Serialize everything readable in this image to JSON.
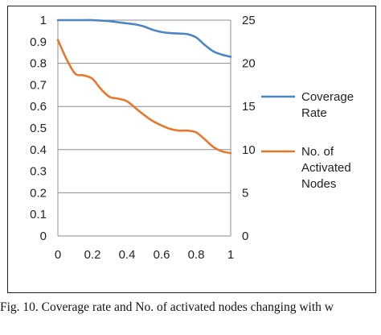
{
  "caption": "Fig. 10. Coverage rate and No. of activated nodes changing with w",
  "chart_data": {
    "type": "line",
    "x_ticks": [
      "0",
      "0.2",
      "0.4",
      "0.6",
      "0.8",
      "1"
    ],
    "y_left_ticks": [
      "0",
      "0.1",
      "0.2",
      "0.3",
      "0.4",
      "0.5",
      "0.6",
      "0.7",
      "0.8",
      "0.9",
      "1"
    ],
    "y_right_ticks": [
      "0",
      "5",
      "10",
      "15",
      "20",
      "25"
    ],
    "xlim": [
      0,
      1
    ],
    "ylim_left": [
      0,
      1
    ],
    "ylim_right": [
      0,
      25
    ],
    "grid": "horizontal",
    "legend_position": "right",
    "series": [
      {
        "name": "Coverage Rate",
        "legend_lines": [
          "Coverage",
          "Rate"
        ],
        "axis": "left",
        "color": "#4a86c6",
        "x": [
          0,
          0.05,
          0.1,
          0.15,
          0.2,
          0.25,
          0.3,
          0.35,
          0.4,
          0.45,
          0.5,
          0.55,
          0.6,
          0.65,
          0.7,
          0.75,
          0.8,
          0.85,
          0.9,
          0.95,
          1
        ],
        "y": [
          1.0,
          1.0,
          1.0,
          1.0,
          1.0,
          0.998,
          0.995,
          0.99,
          0.985,
          0.98,
          0.97,
          0.955,
          0.945,
          0.94,
          0.938,
          0.935,
          0.92,
          0.885,
          0.855,
          0.84,
          0.83
        ]
      },
      {
        "name": "No. of Activated Nodes",
        "legend_lines": [
          "No. of",
          "Activated",
          "Nodes"
        ],
        "axis": "right",
        "color": "#e8762b",
        "x": [
          0,
          0.05,
          0.1,
          0.15,
          0.2,
          0.25,
          0.3,
          0.35,
          0.4,
          0.45,
          0.5,
          0.55,
          0.6,
          0.65,
          0.7,
          0.75,
          0.8,
          0.85,
          0.9,
          0.95,
          1
        ],
        "y": [
          22.7,
          20.5,
          18.8,
          18.6,
          18.2,
          17.0,
          16.1,
          15.9,
          15.6,
          14.8,
          14.0,
          13.3,
          12.8,
          12.4,
          12.2,
          12.2,
          12.0,
          11.2,
          10.3,
          9.8,
          9.6
        ]
      }
    ]
  }
}
